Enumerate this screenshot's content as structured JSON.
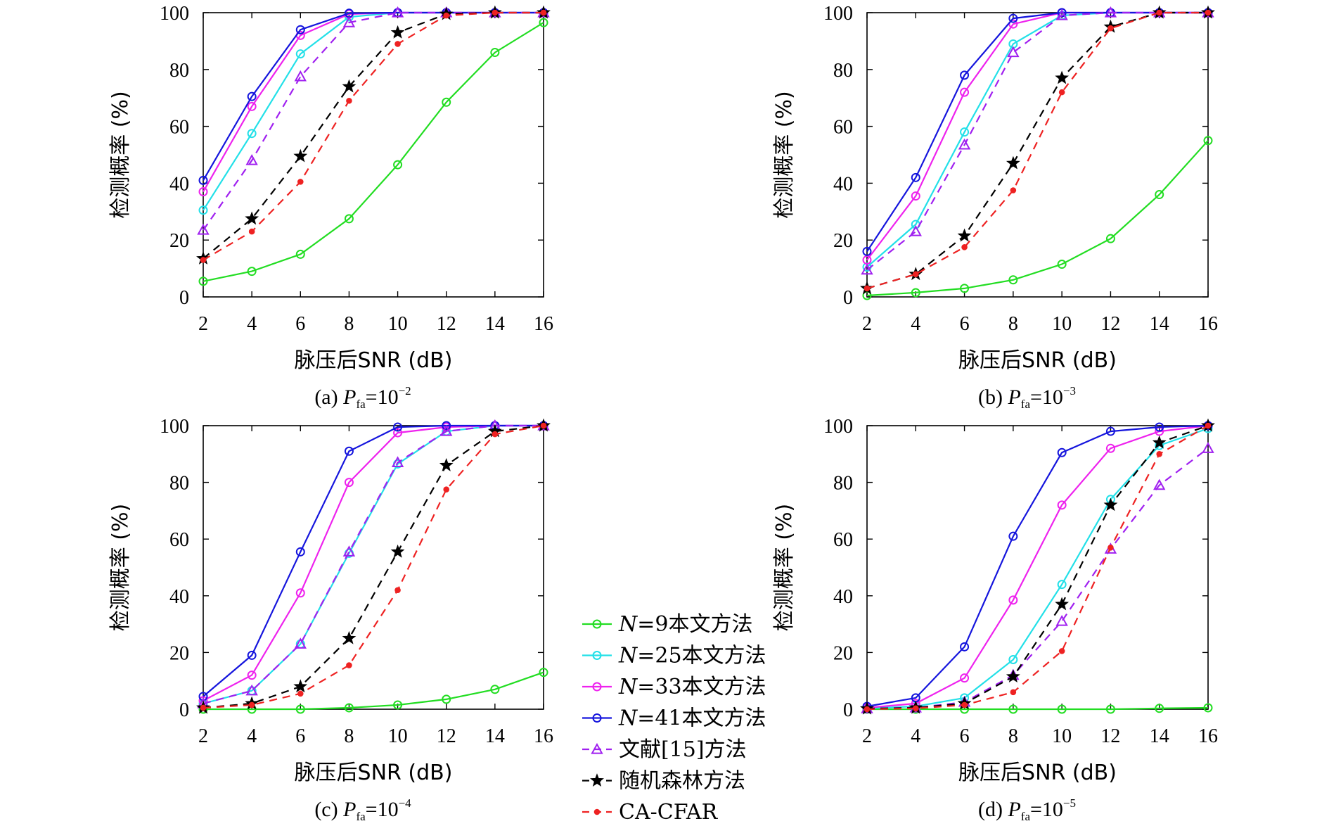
{
  "chart_data": [
    {
      "type": "line",
      "caption": {
        "prefix": "(a)",
        "sym": "P",
        "sub": "fa",
        "eq": "=10",
        "exp": "−2"
      },
      "xlabel": "脉压后SNR (dB)",
      "ylabel": "检测概率 (%)",
      "xlim": [
        2,
        16
      ],
      "ylim": [
        0,
        100
      ],
      "xticks": [
        "2",
        "4",
        "6",
        "8",
        "10",
        "12",
        "14",
        "16"
      ],
      "yticks": [
        "0",
        "20",
        "40",
        "60",
        "80",
        "100"
      ],
      "x": [
        2,
        4,
        6,
        8,
        10,
        12,
        14,
        16
      ],
      "series": [
        {
          "name": "N=9本文方法",
          "values": [
            5.5,
            9,
            15,
            27.5,
            46.5,
            68.5,
            86,
            96.5
          ]
        },
        {
          "name": "N=25本文方法",
          "values": [
            30.5,
            57.5,
            85.5,
            98.5,
            100,
            100,
            100,
            100
          ]
        },
        {
          "name": "N=33本文方法",
          "values": [
            37,
            67,
            92,
            99.5,
            100,
            100,
            100,
            100
          ]
        },
        {
          "name": "N=41本文方法",
          "values": [
            41,
            70.5,
            94,
            99.8,
            100,
            100,
            100,
            100
          ]
        },
        {
          "name": "文献[15]方法",
          "values": [
            23.5,
            48,
            77.5,
            96.5,
            100,
            100,
            100,
            100
          ]
        },
        {
          "name": "随机森林方法",
          "values": [
            13.5,
            27.5,
            49.5,
            74,
            93,
            99.5,
            100,
            100
          ]
        },
        {
          "name": "CA-CFAR",
          "values": [
            13,
            23,
            40.5,
            69,
            89,
            99,
            100,
            100
          ]
        }
      ]
    },
    {
      "type": "line",
      "caption": {
        "prefix": "(b)",
        "sym": "P",
        "sub": "fa",
        "eq": "=10",
        "exp": "−3"
      },
      "xlabel": "脉压后SNR (dB)",
      "ylabel": "检测概率 (%)",
      "xlim": [
        2,
        16
      ],
      "ylim": [
        0,
        100
      ],
      "xticks": [
        "2",
        "4",
        "6",
        "8",
        "10",
        "12",
        "14",
        "16"
      ],
      "yticks": [
        "0",
        "20",
        "40",
        "60",
        "80",
        "100"
      ],
      "x": [
        2,
        4,
        6,
        8,
        10,
        12,
        14,
        16
      ],
      "series": [
        {
          "name": "N=9本文方法",
          "values": [
            0.5,
            1.5,
            3,
            6,
            11.5,
            20.5,
            36,
            55
          ]
        },
        {
          "name": "N=25本文方法",
          "values": [
            10.5,
            25.5,
            58,
            89,
            99,
            100,
            100,
            100
          ]
        },
        {
          "name": "N=33本文方法",
          "values": [
            13,
            35.5,
            72,
            96,
            100,
            100,
            100,
            100
          ]
        },
        {
          "name": "N=41本文方法",
          "values": [
            16,
            42,
            78,
            98,
            100,
            100,
            100,
            100
          ]
        },
        {
          "name": "文献[15]方法",
          "values": [
            9.5,
            23,
            53.5,
            86,
            99,
            100,
            100,
            100
          ]
        },
        {
          "name": "随机森林方法",
          "values": [
            3,
            8,
            21.5,
            47,
            77,
            95,
            100,
            100
          ]
        },
        {
          "name": "CA-CFAR",
          "values": [
            3,
            8,
            17.5,
            37.5,
            72,
            94.5,
            100,
            100
          ]
        }
      ]
    },
    {
      "type": "line",
      "caption": {
        "prefix": "(c)",
        "sym": "P",
        "sub": "fa",
        "eq": "=10",
        "exp": "−4"
      },
      "xlabel": "脉压后SNR (dB)",
      "ylabel": "检测概率 (%)",
      "xlim": [
        2,
        16
      ],
      "ylim": [
        0,
        100
      ],
      "xticks": [
        "2",
        "4",
        "6",
        "8",
        "10",
        "12",
        "14",
        "16"
      ],
      "yticks": [
        "0",
        "20",
        "40",
        "60",
        "80",
        "100"
      ],
      "x": [
        2,
        4,
        6,
        8,
        10,
        12,
        14,
        16
      ],
      "series": [
        {
          "name": "N=9本文方法",
          "values": [
            0,
            0,
            0,
            0.5,
            1.5,
            3.5,
            7,
            13
          ]
        },
        {
          "name": "N=25本文方法",
          "values": [
            2,
            6.5,
            23,
            55,
            86.5,
            98,
            100,
            100
          ]
        },
        {
          "name": "N=33本文方法",
          "values": [
            3,
            12,
            41,
            80,
            97.5,
            99.5,
            100,
            100
          ]
        },
        {
          "name": "N=41本文方法",
          "values": [
            4.5,
            19,
            55.5,
            91,
            99.5,
            100,
            100,
            100
          ]
        },
        {
          "name": "文献[15]方法",
          "values": [
            2,
            6.5,
            23,
            55.5,
            87,
            98,
            100,
            100
          ]
        },
        {
          "name": "随机森林方法",
          "values": [
            0.5,
            2,
            8,
            25,
            55.5,
            86,
            98,
            100
          ]
        },
        {
          "name": "CA-CFAR",
          "values": [
            0.5,
            1.5,
            5.5,
            15.5,
            42,
            77.5,
            97,
            100
          ]
        }
      ]
    },
    {
      "type": "line",
      "caption": {
        "prefix": "(d)",
        "sym": "P",
        "sub": "fa",
        "eq": "=10",
        "exp": "−5"
      },
      "xlabel": "脉压后SNR (dB)",
      "ylabel": "检测概率 (%)",
      "xlim": [
        2,
        16
      ],
      "ylim": [
        0,
        100
      ],
      "xticks": [
        "2",
        "4",
        "6",
        "8",
        "10",
        "12",
        "14",
        "16"
      ],
      "yticks": [
        "0",
        "20",
        "40",
        "60",
        "80",
        "100"
      ],
      "x": [
        2,
        4,
        6,
        8,
        10,
        12,
        14,
        16
      ],
      "series": [
        {
          "name": "N=9本文方法",
          "values": [
            0,
            0,
            0,
            0,
            0,
            0,
            0.3,
            0.5
          ]
        },
        {
          "name": "N=25本文方法",
          "values": [
            0.3,
            1,
            4,
            17.5,
            44,
            74,
            93,
            99
          ]
        },
        {
          "name": "N=33本文方法",
          "values": [
            0.5,
            2,
            11,
            38.5,
            72,
            92,
            98,
            100
          ]
        },
        {
          "name": "N=41本文方法",
          "values": [
            1,
            4,
            22,
            61,
            90.5,
            98,
            99.5,
            100
          ]
        },
        {
          "name": "文献[15]方法",
          "values": [
            0.2,
            0.5,
            2.5,
            12,
            31,
            56.5,
            79,
            92
          ]
        },
        {
          "name": "随机森林方法",
          "values": [
            0.2,
            0.5,
            2,
            11.5,
            37,
            72,
            94,
            100
          ]
        },
        {
          "name": "CA-CFAR",
          "values": [
            0,
            0.3,
            1.5,
            6,
            20.5,
            57,
            90,
            100
          ]
        }
      ]
    }
  ],
  "legend": {
    "position": "bottom-center",
    "items": [
      {
        "label": "N=9本文方法",
        "color": "#22dd22",
        "dash": "solid",
        "marker": "circle"
      },
      {
        "label": "N=25本文方法",
        "color": "#22e0e8",
        "dash": "solid",
        "marker": "circle"
      },
      {
        "label": "N=33本文方法",
        "color": "#ee22ee",
        "dash": "solid",
        "marker": "circle"
      },
      {
        "label": "N=41本文方法",
        "color": "#1515dd",
        "dash": "solid",
        "marker": "circle"
      },
      {
        "label": "文献[15]方法",
        "color": "#a020f0",
        "dash": "dashed",
        "marker": "triangle"
      },
      {
        "label": "随机森林方法",
        "color": "#000000",
        "dash": "dashed",
        "marker": "star"
      },
      {
        "label": "CA-CFAR",
        "color": "#ee2222",
        "dash": "dashed",
        "marker": "dot"
      }
    ]
  }
}
